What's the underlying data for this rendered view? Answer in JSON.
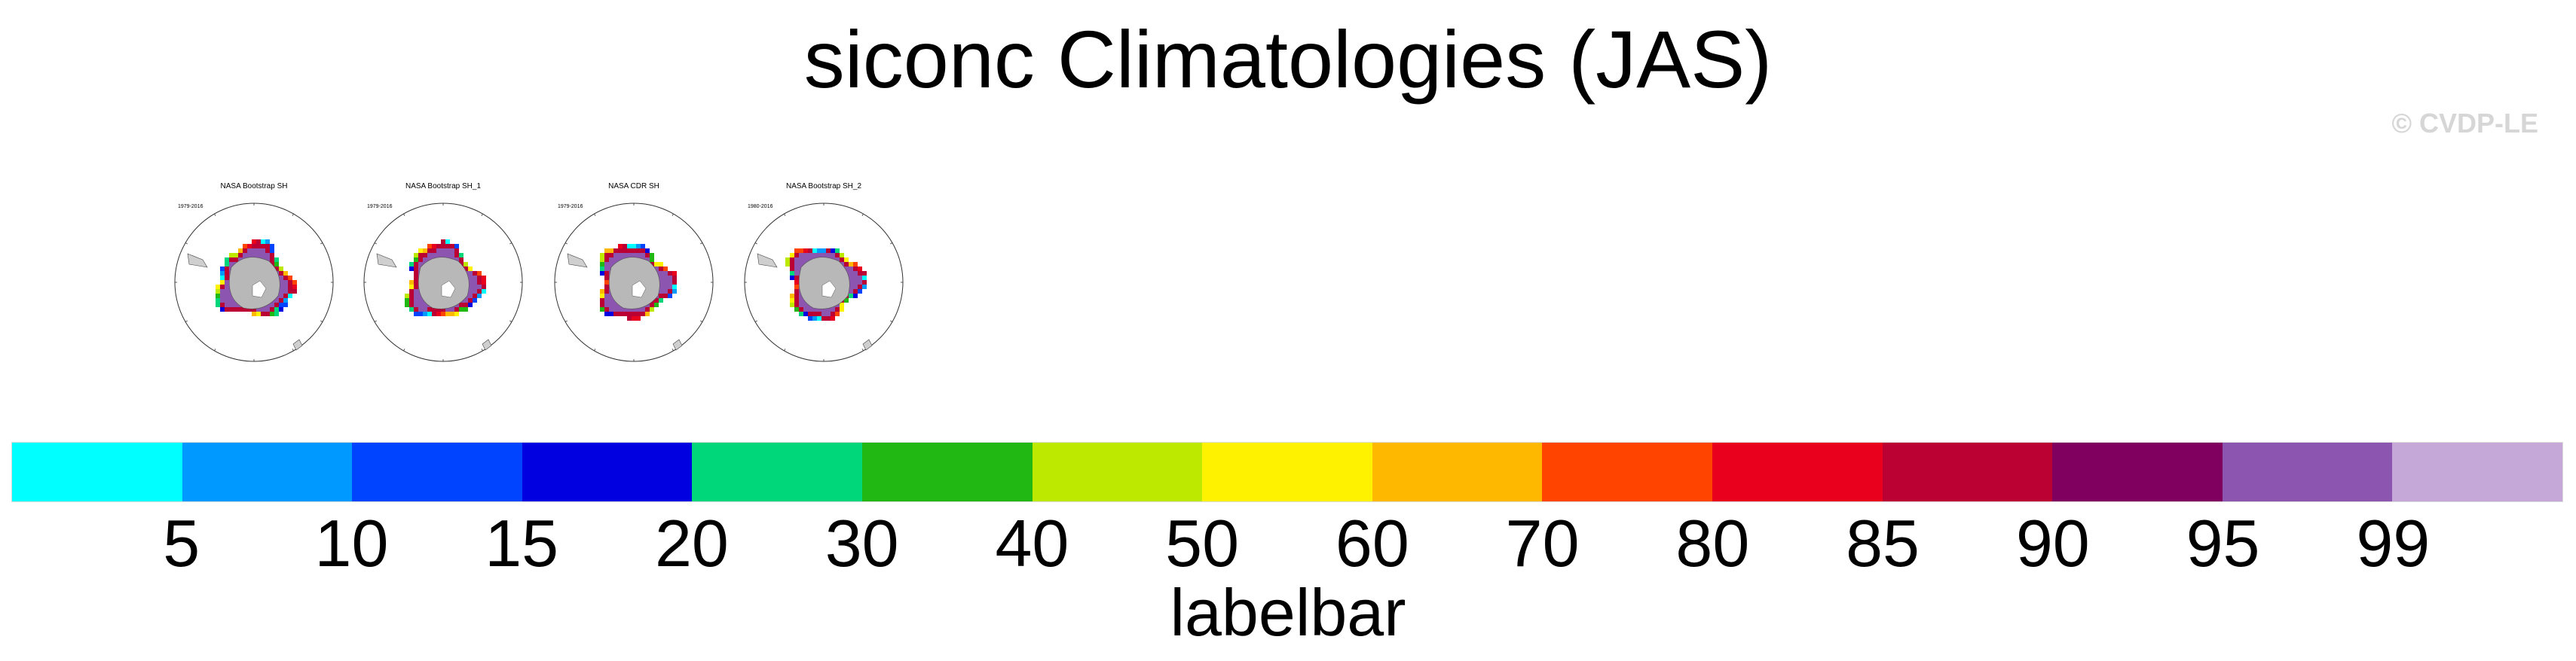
{
  "title": "siconc Climatologies (JAS)",
  "watermark": "© CVDP-LE",
  "panels": [
    {
      "title": "NASA Bootstrap SH",
      "years": "1979-2016"
    },
    {
      "title": "NASA Bootstrap SH_1",
      "years": "1979-2016"
    },
    {
      "title": "NASA CDR SH",
      "years": "1979-2016"
    },
    {
      "title": "NASA Bootstrap SH_2",
      "years": "1980-2016"
    }
  ],
  "labelbar": {
    "title": "labelbar",
    "ticks": [
      "5",
      "10",
      "15",
      "20",
      "30",
      "40",
      "50",
      "60",
      "70",
      "80",
      "85",
      "90",
      "95",
      "99"
    ],
    "colors": [
      "#00ffff",
      "#0099ff",
      "#0044ff",
      "#0000e0",
      "#00d67a",
      "#22b814",
      "#bde800",
      "#fff200",
      "#ffb800",
      "#ff4400",
      "#e8001c",
      "#bb0033",
      "#800060",
      "#8c55b0",
      "#c6a8d8"
    ]
  }
}
